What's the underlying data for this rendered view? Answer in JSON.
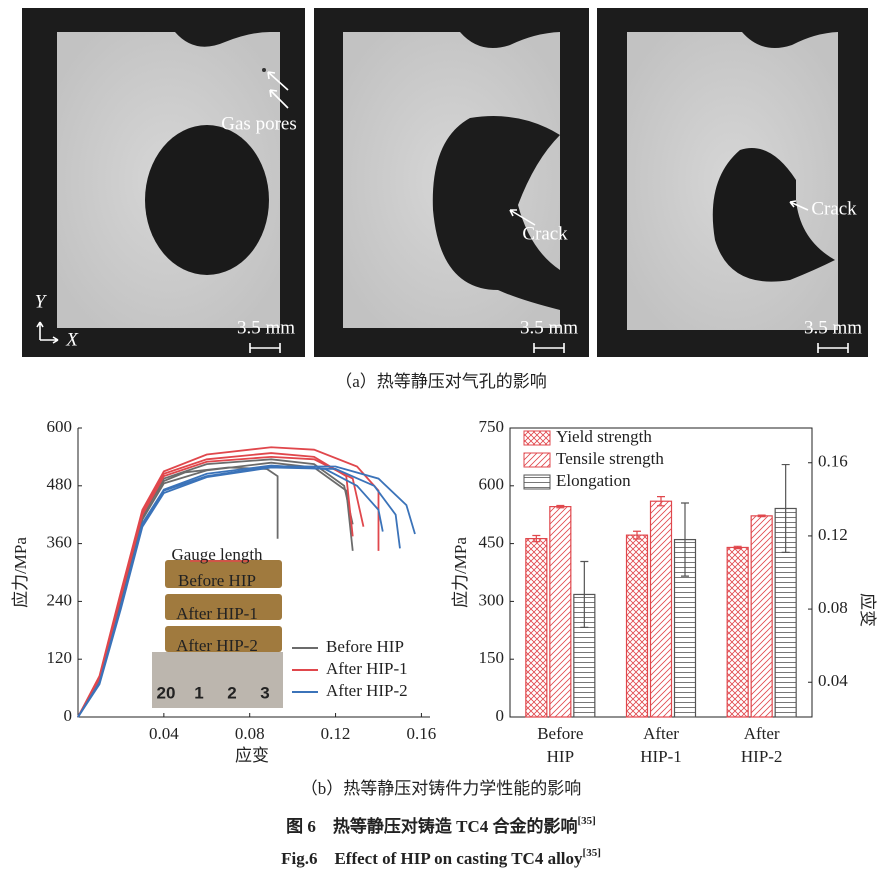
{
  "panel_a": {
    "images": [
      {
        "labels": [
          "Gas pores"
        ],
        "scale": "3.5 mm"
      },
      {
        "labels": [
          "Crack"
        ],
        "scale": "3.5 mm"
      },
      {
        "labels": [
          "Crack"
        ],
        "scale": "3.5 mm"
      }
    ],
    "axes": {
      "y": "Y",
      "x": "X"
    },
    "caption": "（a）热等静压对气孔的影响"
  },
  "chart_data": [
    {
      "type": "line",
      "xlabel": "应变",
      "ylabel": "应力/MPa",
      "xlim": [
        0,
        0.164
      ],
      "ylim": [
        0,
        600
      ],
      "xticks": [
        0.04,
        0.08,
        0.12,
        0.16
      ],
      "yticks": [
        0,
        120,
        240,
        360,
        480,
        600
      ],
      "legend": "bottom-right",
      "series": [
        {
          "name": "Before HIP",
          "color": "#6b6b6b",
          "curves": [
            {
              "x": [
                0,
                0.01,
                0.02,
                0.03,
                0.04,
                0.05,
                0.07,
                0.088,
                0.093,
                0.093
              ],
              "values": [
                0,
                80,
                250,
                420,
                490,
                508,
                518,
                515,
                500,
                370
              ]
            },
            {
              "x": [
                0,
                0.01,
                0.02,
                0.03,
                0.04,
                0.06,
                0.09,
                0.11,
                0.125,
                0.128
              ],
              "values": [
                0,
                75,
                240,
                410,
                485,
                512,
                528,
                518,
                470,
                345
              ]
            },
            {
              "x": [
                0,
                0.01,
                0.02,
                0.03,
                0.04,
                0.06,
                0.09,
                0.11,
                0.124,
                0.128
              ],
              "values": [
                0,
                78,
                245,
                415,
                495,
                525,
                535,
                525,
                480,
                400
              ]
            }
          ]
        },
        {
          "name": "After HIP-1",
          "color": "#e0474c",
          "curves": [
            {
              "x": [
                0,
                0.01,
                0.02,
                0.03,
                0.04,
                0.06,
                0.09,
                0.11,
                0.13,
                0.14,
                0.14
              ],
              "values": [
                0,
                85,
                260,
                430,
                510,
                545,
                560,
                555,
                520,
                470,
                345
              ]
            },
            {
              "x": [
                0,
                0.01,
                0.02,
                0.03,
                0.04,
                0.06,
                0.09,
                0.11,
                0.125,
                0.128
              ],
              "values": [
                0,
                82,
                255,
                425,
                505,
                535,
                548,
                540,
                500,
                375
              ]
            },
            {
              "x": [
                0,
                0.01,
                0.02,
                0.03,
                0.04,
                0.06,
                0.09,
                0.11,
                0.128,
                0.133
              ],
              "values": [
                0,
                80,
                250,
                420,
                500,
                530,
                540,
                535,
                495,
                395
              ]
            }
          ]
        },
        {
          "name": "After HIP-2",
          "color": "#3b73b9",
          "curves": [
            {
              "x": [
                0,
                0.01,
                0.02,
                0.03,
                0.04,
                0.06,
                0.09,
                0.12,
                0.14,
                0.153,
                0.157
              ],
              "values": [
                0,
                70,
                230,
                400,
                470,
                500,
                520,
                520,
                495,
                440,
                380
              ]
            },
            {
              "x": [
                0,
                0.01,
                0.02,
                0.03,
                0.04,
                0.06,
                0.09,
                0.12,
                0.138,
                0.148,
                0.15
              ],
              "values": [
                0,
                68,
                225,
                395,
                465,
                498,
                518,
                515,
                480,
                420,
                350
              ]
            },
            {
              "x": [
                0,
                0.01,
                0.02,
                0.03,
                0.04,
                0.06,
                0.09,
                0.115,
                0.13,
                0.14,
                0.142
              ],
              "values": [
                0,
                72,
                232,
                402,
                472,
                505,
                522,
                515,
                480,
                430,
                385
              ]
            }
          ]
        }
      ],
      "inset": {
        "gauge": "Gauge length",
        "labels": [
          "Before HIP",
          "After HIP-1",
          "After HIP-2"
        ],
        "ruler": [
          "20",
          "1",
          "2",
          "3"
        ]
      }
    },
    {
      "type": "bar",
      "ylabel": "应力/MPa",
      "y2label": "应变",
      "categories": [
        [
          "Before",
          "HIP"
        ],
        [
          "After",
          "HIP-1"
        ],
        [
          "After",
          "HIP-2"
        ]
      ],
      "ylim": [
        0,
        750
      ],
      "yticks": [
        0,
        150,
        300,
        450,
        600,
        750
      ],
      "y2lim": [
        0.021,
        0.179
      ],
      "y2ticks": [
        0.04,
        0.08,
        0.12,
        0.16
      ],
      "legend": "top-left",
      "series": [
        {
          "name": "Yield strength",
          "color": "#e0474c",
          "pattern": "crosshatch",
          "values": [
            463,
            472,
            440
          ],
          "errors": [
            8,
            10,
            3
          ]
        },
        {
          "name": "Tensile strength",
          "color": "#e0474c",
          "pattern": "diagonal",
          "values": [
            546,
            560,
            522
          ],
          "errors": [
            3,
            12,
            2
          ]
        },
        {
          "name": "Elongation",
          "color": "#555555",
          "pattern": "horizontal",
          "axis": "y2",
          "values": [
            0.088,
            0.118,
            0.135
          ],
          "errors": [
            0.018,
            0.02,
            0.024
          ]
        }
      ]
    }
  ],
  "caption_b": "（b）热等静压对铸件力学性能的影响",
  "figure_caption": {
    "zh": "图 6　热等静压对铸造 TC4 合金的影响",
    "zh_ref": "[35]",
    "en": "Fig.6　Effect of HIP on casting TC4 alloy",
    "en_ref": "[35]"
  }
}
